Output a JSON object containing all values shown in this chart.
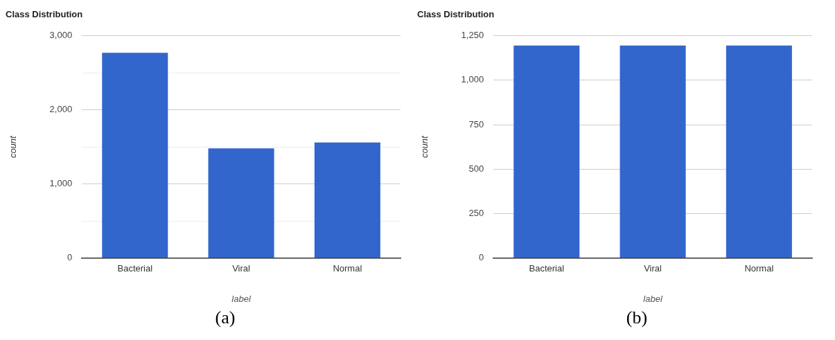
{
  "chart_data": [
    {
      "type": "bar",
      "title": "Class Distribution",
      "xlabel": "label",
      "ylabel": "count",
      "categories": [
        "Bacterial",
        "Viral",
        "Normal"
      ],
      "values": [
        2770,
        1480,
        1560
      ],
      "color": "#3366cc",
      "ylim": [
        0,
        3000
      ],
      "yticks": [
        0,
        {
          "value": 500,
          "label": null
        },
        {
          "value": 1000,
          "label": "1,000"
        },
        {
          "value": 1500,
          "label": null
        },
        {
          "value": 2000,
          "label": "2,000"
        },
        {
          "value": 2500,
          "label": null
        },
        {
          "value": 3000,
          "label": "3,000"
        }
      ],
      "grid": "y",
      "legend": false,
      "annotations": [
        "(a)"
      ]
    },
    {
      "type": "bar",
      "title": "Class Distribution",
      "xlabel": "label",
      "ylabel": "count",
      "categories": [
        "Bacterial",
        "Viral",
        "Normal"
      ],
      "values": [
        1195,
        1195,
        1195
      ],
      "color": "#3366cc",
      "ylim": [
        0,
        1250
      ],
      "yticks": [
        0,
        250,
        500,
        750,
        {
          "value": 1000,
          "label": "1,000"
        },
        {
          "value": 1250,
          "label": "1,250"
        }
      ],
      "grid": "y",
      "legend": false,
      "annotations": [
        "(b)"
      ]
    }
  ]
}
